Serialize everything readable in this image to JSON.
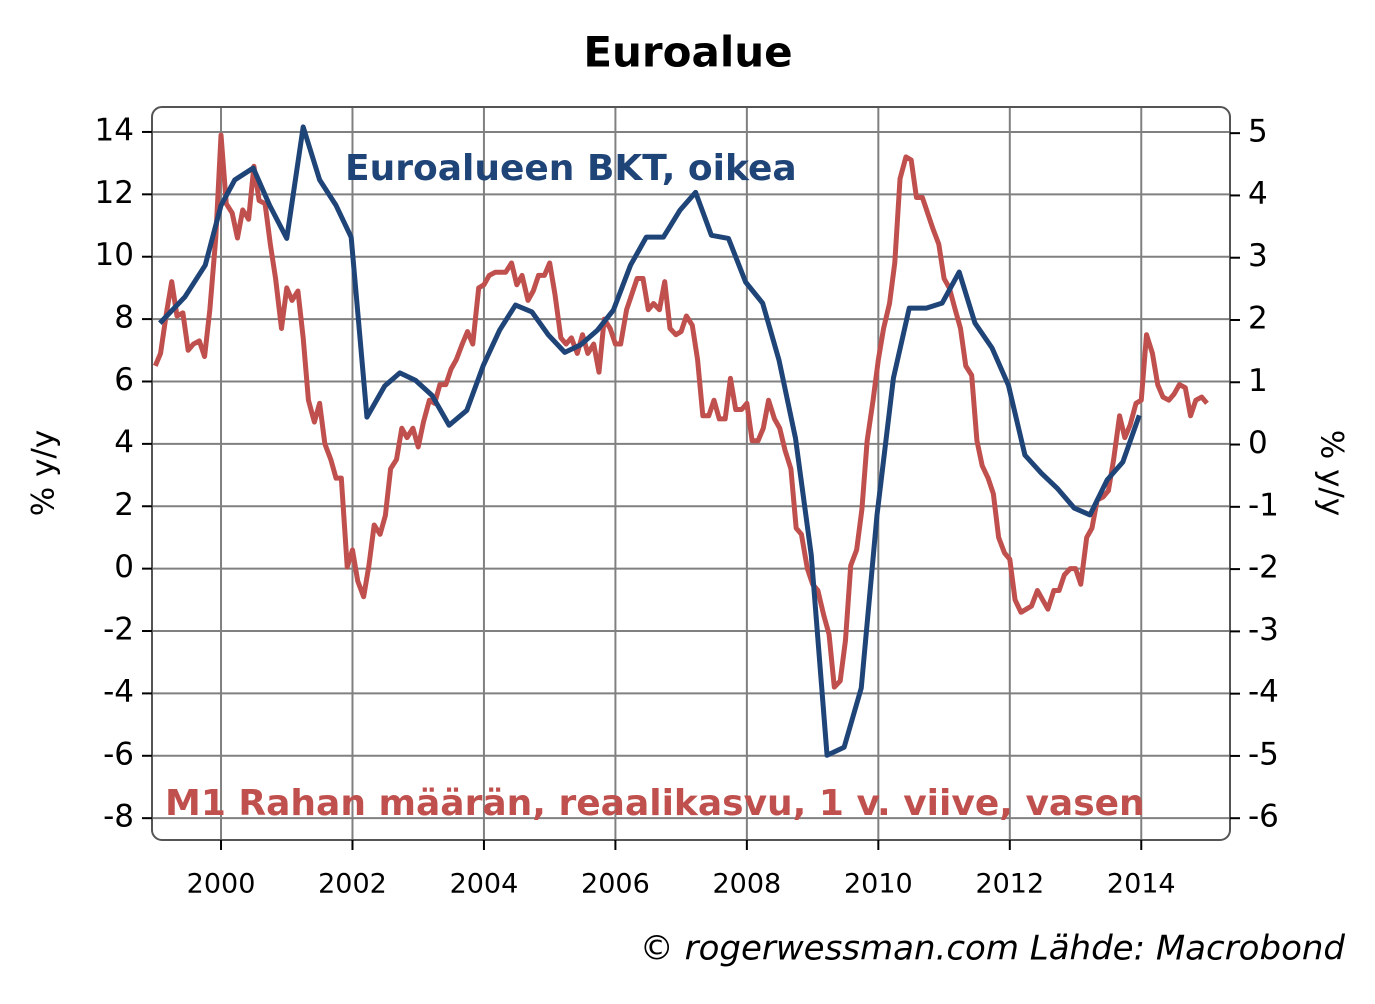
{
  "chart_data": {
    "type": "line",
    "title": "Euroalue",
    "ylabel": "% y/y",
    "y2label": "% y/y",
    "source": "© rogerwessman.com Lähde: Macrobond",
    "xlim": [
      1998.95,
      2015.35
    ],
    "xticks": [
      2000,
      2002,
      2004,
      2006,
      2008,
      2010,
      2012,
      2014
    ],
    "ylim": [
      -8.7,
      14.8
    ],
    "yticks": [
      -8,
      -6,
      -4,
      -2,
      0,
      2,
      4,
      6,
      8,
      10,
      12,
      14
    ],
    "y2lim": [
      -6.35,
      5.42
    ],
    "y2ticks": [
      -6,
      -5,
      -4,
      -3,
      -2,
      -1,
      0,
      1,
      2,
      3,
      4,
      5
    ],
    "grid": true,
    "series": [
      {
        "name": "M1 Rahan määrän, reaalikasvu, 1 v. viive, vasen",
        "color": "#c0504d",
        "axis": "y",
        "x": [
          1999.0,
          1999.08,
          1999.17,
          1999.25,
          1999.33,
          1999.42,
          1999.5,
          1999.58,
          1999.67,
          1999.75,
          1999.83,
          1999.92,
          2000.0,
          2000.08,
          2000.17,
          2000.25,
          2000.33,
          2000.42,
          2000.5,
          2000.58,
          2000.67,
          2000.75,
          2000.83,
          2000.92,
          2001.0,
          2001.08,
          2001.17,
          2001.25,
          2001.33,
          2001.42,
          2001.5,
          2001.58,
          2001.67,
          2001.75,
          2001.83,
          2001.92,
          2002.0,
          2002.08,
          2002.17,
          2002.25,
          2002.33,
          2002.42,
          2002.5,
          2002.58,
          2002.67,
          2002.75,
          2002.83,
          2002.92,
          2003.0,
          2003.08,
          2003.17,
          2003.25,
          2003.33,
          2003.42,
          2003.5,
          2003.58,
          2003.67,
          2003.75,
          2003.83,
          2003.92,
          2004.0,
          2004.08,
          2004.17,
          2004.25,
          2004.33,
          2004.42,
          2004.5,
          2004.58,
          2004.67,
          2004.75,
          2004.83,
          2004.92,
          2005.0,
          2005.08,
          2005.17,
          2005.25,
          2005.33,
          2005.42,
          2005.5,
          2005.58,
          2005.67,
          2005.75,
          2005.83,
          2005.92,
          2006.0,
          2006.08,
          2006.17,
          2006.25,
          2006.33,
          2006.42,
          2006.5,
          2006.58,
          2006.67,
          2006.75,
          2006.83,
          2006.92,
          2007.0,
          2007.08,
          2007.17,
          2007.25,
          2007.33,
          2007.42,
          2007.5,
          2007.58,
          2007.67,
          2007.75,
          2007.83,
          2007.92,
          2008.0,
          2008.08,
          2008.17,
          2008.25,
          2008.33,
          2008.42,
          2008.5,
          2008.58,
          2008.67,
          2008.75,
          2008.83,
          2008.92,
          2009.0,
          2009.08,
          2009.17,
          2009.25,
          2009.33,
          2009.42,
          2009.5,
          2009.58,
          2009.67,
          2009.75,
          2009.83,
          2009.92,
          2010.0,
          2010.08,
          2010.17,
          2010.25,
          2010.33,
          2010.42,
          2010.5,
          2010.58,
          2010.67,
          2010.75,
          2010.83,
          2010.92,
          2011.0,
          2011.08,
          2011.17,
          2011.25,
          2011.33,
          2011.42,
          2011.5,
          2011.58,
          2011.67,
          2011.75,
          2011.83,
          2011.92,
          2012.0,
          2012.08,
          2012.17,
          2012.25,
          2012.33,
          2012.42,
          2012.5,
          2012.58,
          2012.67,
          2012.75,
          2012.83,
          2012.92,
          2013.0,
          2013.08,
          2013.17,
          2013.25,
          2013.33,
          2013.42,
          2013.5,
          2013.58,
          2013.67,
          2013.75,
          2013.83,
          2013.92,
          2014.0,
          2014.08,
          2014.17,
          2014.25,
          2014.33,
          2014.42,
          2014.5,
          2014.58,
          2014.67,
          2014.75,
          2014.83,
          2014.92,
          2015.0
        ],
        "values": [
          6.5,
          6.9,
          8.2,
          9.2,
          8.1,
          8.2,
          7.0,
          7.2,
          7.3,
          6.8,
          8.3,
          10.6,
          13.9,
          11.7,
          11.4,
          10.6,
          11.5,
          11.2,
          12.9,
          11.8,
          11.7,
          10.4,
          9.3,
          7.7,
          9.0,
          8.6,
          8.9,
          7.4,
          5.4,
          4.7,
          5.3,
          4.0,
          3.5,
          2.9,
          2.9,
          0.05,
          0.6,
          -0.4,
          -0.9,
          0.1,
          1.4,
          1.1,
          1.7,
          3.2,
          3.5,
          4.5,
          4.2,
          4.5,
          3.9,
          4.7,
          5.4,
          5.3,
          5.9,
          5.9,
          6.4,
          6.7,
          7.2,
          7.6,
          7.2,
          9.0,
          9.1,
          9.4,
          9.5,
          9.5,
          9.5,
          9.8,
          9.1,
          9.4,
          8.6,
          8.9,
          9.4,
          9.4,
          9.8,
          8.8,
          7.4,
          7.2,
          7.4,
          6.9,
          7.5,
          6.9,
          7.2,
          6.3,
          8.0,
          7.7,
          7.2,
          7.2,
          8.3,
          8.8,
          9.3,
          9.3,
          8.3,
          8.5,
          8.3,
          9.2,
          7.7,
          7.5,
          7.6,
          8.1,
          7.8,
          6.7,
          4.9,
          4.9,
          5.4,
          4.8,
          4.8,
          6.1,
          5.1,
          5.1,
          5.3,
          4.1,
          4.1,
          4.5,
          5.4,
          4.8,
          4.5,
          3.8,
          3.2,
          1.3,
          1.1,
          0.0,
          -0.5,
          -0.7,
          -1.5,
          -2.1,
          -3.8,
          -3.6,
          -2.3,
          0.1,
          0.6,
          1.9,
          4.1,
          5.4,
          6.7,
          7.7,
          8.5,
          9.8,
          12.5,
          13.2,
          13.1,
          11.9,
          11.9,
          11.4,
          10.9,
          10.4,
          9.3,
          9.0,
          8.3,
          7.7,
          6.5,
          6.2,
          4.1,
          3.3,
          2.9,
          2.4,
          1.0,
          0.5,
          0.3,
          -1.0,
          -1.4,
          -1.3,
          -1.2,
          -0.7,
          -1.0,
          -1.3,
          -0.7,
          -0.7,
          -0.2,
          0.0,
          0.0,
          -0.5,
          1.0,
          1.3,
          2.2,
          2.3,
          2.5,
          3.5,
          4.9,
          4.2,
          4.6,
          5.3,
          5.4,
          7.5,
          6.9,
          5.9,
          5.5,
          5.4,
          5.6,
          5.9,
          5.8,
          4.9,
          5.4,
          5.5,
          5.3
        ]
      },
      {
        "name": "Euroalueen BKT, oikea",
        "color": "#1f4478",
        "axis": "y2",
        "x": [
          1999.07,
          1999.45,
          1999.76,
          2000.0,
          2000.21,
          2000.49,
          2000.74,
          2001.0,
          2001.25,
          2001.5,
          2001.75,
          2001.98,
          2002.22,
          2002.49,
          2002.72,
          2002.96,
          2003.21,
          2003.47,
          2003.74,
          2003.99,
          2004.24,
          2004.48,
          2004.73,
          2004.98,
          2005.23,
          2005.47,
          2005.73,
          2005.97,
          2006.23,
          2006.47,
          2006.73,
          2006.98,
          2007.22,
          2007.46,
          2007.72,
          2007.98,
          2008.24,
          2008.49,
          2008.74,
          2008.98,
          2009.22,
          2009.48,
          2009.74,
          2009.98,
          2010.23,
          2010.47,
          2010.73,
          2010.97,
          2011.23,
          2011.47,
          2011.73,
          2011.98,
          2012.23,
          2012.48,
          2012.72,
          2012.98,
          2013.22,
          2013.48,
          2013.72,
          2013.97
        ],
        "values": [
          1.95,
          2.37,
          2.88,
          3.84,
          4.25,
          4.44,
          3.84,
          3.31,
          5.1,
          4.25,
          3.84,
          3.33,
          0.44,
          0.94,
          1.15,
          1.03,
          0.79,
          0.31,
          0.55,
          1.27,
          1.84,
          2.24,
          2.13,
          1.76,
          1.48,
          1.6,
          1.84,
          2.16,
          2.88,
          3.33,
          3.33,
          3.76,
          4.05,
          3.36,
          3.31,
          2.61,
          2.27,
          1.35,
          0.1,
          -1.78,
          -4.99,
          -4.86,
          -3.91,
          -1.13,
          1.07,
          2.19,
          2.19,
          2.27,
          2.77,
          1.95,
          1.55,
          0.95,
          -0.17,
          -0.46,
          -0.7,
          -1.02,
          -1.13,
          -0.57,
          -0.28,
          0.47
        ]
      }
    ]
  }
}
